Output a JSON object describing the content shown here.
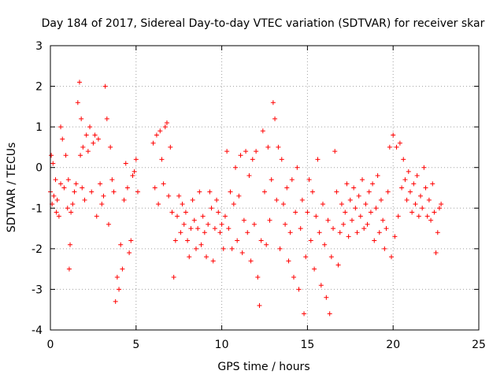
{
  "chart_data": {
    "type": "scatter",
    "title": "Day 184 of 2017, Sidereal Day-to-day VTEC variation (SDTVAR) for receiver skar",
    "xlabel": "GPS time / hours",
    "ylabel": "SDTVAR / TECUs",
    "xlim": [
      0,
      25
    ],
    "ylim": [
      -4,
      3
    ],
    "xticks": [
      0,
      5,
      10,
      15,
      20,
      25
    ],
    "yticks": [
      -4,
      -3,
      -2,
      -1,
      0,
      1,
      2,
      3
    ],
    "grid": true,
    "marker": "+",
    "series": [
      {
        "name": "SDTVAR",
        "color": "#ff0000",
        "points": [
          [
            0.0,
            -0.6
          ],
          [
            0.05,
            0.3
          ],
          [
            0.1,
            -0.9
          ],
          [
            0.15,
            0.1
          ],
          [
            0.2,
            -0.7
          ],
          [
            0.3,
            -0.3
          ],
          [
            0.35,
            -1.1
          ],
          [
            0.4,
            -0.8
          ],
          [
            0.5,
            -1.2
          ],
          [
            0.6,
            -0.4
          ],
          [
            0.6,
            1.0
          ],
          [
            0.7,
            0.7
          ],
          [
            0.8,
            -0.5
          ],
          [
            0.9,
            0.3
          ],
          [
            1.0,
            -1.0
          ],
          [
            1.05,
            -0.3
          ],
          [
            1.1,
            -2.5
          ],
          [
            1.15,
            -1.9
          ],
          [
            1.2,
            -1.1
          ],
          [
            1.3,
            -0.9
          ],
          [
            1.4,
            -0.6
          ],
          [
            1.5,
            -0.4
          ],
          [
            1.6,
            1.6
          ],
          [
            1.7,
            2.1
          ],
          [
            1.75,
            0.3
          ],
          [
            1.8,
            1.2
          ],
          [
            1.85,
            -0.5
          ],
          [
            1.9,
            0.5
          ],
          [
            2.0,
            -0.8
          ],
          [
            2.1,
            0.8
          ],
          [
            2.2,
            0.4
          ],
          [
            2.3,
            1.0
          ],
          [
            2.4,
            -0.6
          ],
          [
            2.5,
            0.6
          ],
          [
            2.6,
            0.8
          ],
          [
            2.7,
            -1.2
          ],
          [
            2.8,
            0.7
          ],
          [
            2.9,
            -0.4
          ],
          [
            3.0,
            -0.9
          ],
          [
            3.1,
            -0.7
          ],
          [
            3.2,
            2.0
          ],
          [
            3.3,
            1.2
          ],
          [
            3.4,
            -1.4
          ],
          [
            3.5,
            0.5
          ],
          [
            3.6,
            -0.3
          ],
          [
            3.7,
            -0.6
          ],
          [
            3.8,
            -3.3
          ],
          [
            3.9,
            -2.7
          ],
          [
            4.0,
            -3.0
          ],
          [
            4.1,
            -1.9
          ],
          [
            4.2,
            -2.5
          ],
          [
            4.3,
            -0.8
          ],
          [
            4.4,
            0.1
          ],
          [
            4.5,
            -0.5
          ],
          [
            4.6,
            -2.1
          ],
          [
            4.7,
            -1.8
          ],
          [
            4.8,
            -0.2
          ],
          [
            4.9,
            -0.1
          ],
          [
            5.0,
            0.2
          ],
          [
            5.1,
            -0.6
          ],
          [
            6.0,
            0.6
          ],
          [
            6.1,
            -0.5
          ],
          [
            6.2,
            0.8
          ],
          [
            6.3,
            -0.9
          ],
          [
            6.4,
            0.9
          ],
          [
            6.5,
            0.2
          ],
          [
            6.6,
            -0.4
          ],
          [
            6.7,
            1.0
          ],
          [
            6.8,
            1.1
          ],
          [
            6.9,
            -0.7
          ],
          [
            7.0,
            0.5
          ],
          [
            7.1,
            -1.1
          ],
          [
            7.2,
            -2.7
          ],
          [
            7.3,
            -1.8
          ],
          [
            7.4,
            -1.2
          ],
          [
            7.5,
            -0.7
          ],
          [
            7.6,
            -1.6
          ],
          [
            7.7,
            -0.9
          ],
          [
            7.8,
            -1.4
          ],
          [
            7.9,
            -1.1
          ],
          [
            8.0,
            -1.8
          ],
          [
            8.1,
            -2.2
          ],
          [
            8.2,
            -1.5
          ],
          [
            8.3,
            -0.8
          ],
          [
            8.4,
            -1.3
          ],
          [
            8.5,
            -2.0
          ],
          [
            8.6,
            -1.5
          ],
          [
            8.7,
            -0.6
          ],
          [
            8.8,
            -1.9
          ],
          [
            8.9,
            -1.2
          ],
          [
            9.0,
            -1.6
          ],
          [
            9.1,
            -2.2
          ],
          [
            9.2,
            -1.4
          ],
          [
            9.3,
            -0.6
          ],
          [
            9.4,
            -1.0
          ],
          [
            9.5,
            -2.3
          ],
          [
            9.6,
            -1.5
          ],
          [
            9.7,
            -0.8
          ],
          [
            9.8,
            -1.1
          ],
          [
            9.9,
            -1.6
          ],
          [
            10.0,
            -1.4
          ],
          [
            10.1,
            -2.0
          ],
          [
            10.2,
            -1.2
          ],
          [
            10.3,
            0.4
          ],
          [
            10.4,
            -1.5
          ],
          [
            10.5,
            -0.6
          ],
          [
            10.6,
            -2.0
          ],
          [
            10.7,
            -0.9
          ],
          [
            10.8,
            0.0
          ],
          [
            10.9,
            -1.8
          ],
          [
            11.0,
            -0.7
          ],
          [
            11.1,
            0.3
          ],
          [
            11.2,
            -2.1
          ],
          [
            11.3,
            -1.3
          ],
          [
            11.4,
            0.4
          ],
          [
            11.5,
            -1.6
          ],
          [
            11.6,
            -0.2
          ],
          [
            11.7,
            -2.3
          ],
          [
            11.8,
            0.2
          ],
          [
            11.9,
            -1.4
          ],
          [
            12.0,
            0.4
          ],
          [
            12.1,
            -2.7
          ],
          [
            12.2,
            -3.4
          ],
          [
            12.3,
            -1.8
          ],
          [
            12.4,
            0.9
          ],
          [
            12.5,
            -0.6
          ],
          [
            12.6,
            -1.9
          ],
          [
            12.7,
            0.5
          ],
          [
            12.8,
            -1.3
          ],
          [
            12.9,
            -0.3
          ],
          [
            13.0,
            1.6
          ],
          [
            13.1,
            1.2
          ],
          [
            13.2,
            -0.8
          ],
          [
            13.3,
            0.5
          ],
          [
            13.4,
            -2.0
          ],
          [
            13.5,
            0.2
          ],
          [
            13.6,
            -0.9
          ],
          [
            13.7,
            -1.4
          ],
          [
            13.8,
            -0.5
          ],
          [
            13.9,
            -2.3
          ],
          [
            14.0,
            -1.6
          ],
          [
            14.1,
            -0.3
          ],
          [
            14.2,
            -2.7
          ],
          [
            14.3,
            -1.1
          ],
          [
            14.4,
            0.0
          ],
          [
            14.5,
            -3.0
          ],
          [
            14.6,
            -1.5
          ],
          [
            14.7,
            -0.8
          ],
          [
            14.8,
            -3.6
          ],
          [
            14.9,
            -2.2
          ],
          [
            15.0,
            -1.1
          ],
          [
            15.1,
            -0.3
          ],
          [
            15.2,
            -1.8
          ],
          [
            15.3,
            -0.6
          ],
          [
            15.4,
            -2.5
          ],
          [
            15.5,
            -1.2
          ],
          [
            15.6,
            0.2
          ],
          [
            15.7,
            -1.6
          ],
          [
            15.8,
            -2.9
          ],
          [
            15.9,
            -0.9
          ],
          [
            16.0,
            -1.9
          ],
          [
            16.1,
            -3.2
          ],
          [
            16.2,
            -1.3
          ],
          [
            16.3,
            -3.6
          ],
          [
            16.4,
            -2.2
          ],
          [
            16.5,
            -1.5
          ],
          [
            16.6,
            0.4
          ],
          [
            16.7,
            -0.6
          ],
          [
            16.8,
            -2.4
          ],
          [
            16.9,
            -1.6
          ],
          [
            17.0,
            -0.9
          ],
          [
            17.1,
            -1.4
          ],
          [
            17.2,
            -1.1
          ],
          [
            17.3,
            -0.4
          ],
          [
            17.4,
            -1.7
          ],
          [
            17.5,
            -0.8
          ],
          [
            17.6,
            -1.3
          ],
          [
            17.7,
            -0.5
          ],
          [
            17.8,
            -1.0
          ],
          [
            17.9,
            -1.6
          ],
          [
            18.0,
            -0.7
          ],
          [
            18.1,
            -1.2
          ],
          [
            18.2,
            -0.3
          ],
          [
            18.3,
            -1.5
          ],
          [
            18.4,
            -0.9
          ],
          [
            18.5,
            -1.4
          ],
          [
            18.6,
            -0.6
          ],
          [
            18.7,
            -1.1
          ],
          [
            18.8,
            -0.4
          ],
          [
            18.9,
            -1.8
          ],
          [
            19.0,
            -1.0
          ],
          [
            19.1,
            -0.2
          ],
          [
            19.2,
            -1.6
          ],
          [
            19.3,
            -0.8
          ],
          [
            19.4,
            -1.3
          ],
          [
            19.5,
            -2.0
          ],
          [
            19.6,
            -1.5
          ],
          [
            19.7,
            -0.6
          ],
          [
            19.8,
            0.5
          ],
          [
            19.9,
            -2.2
          ],
          [
            20.0,
            0.8
          ],
          [
            20.1,
            -1.7
          ],
          [
            20.2,
            0.5
          ],
          [
            20.3,
            -1.2
          ],
          [
            20.4,
            0.6
          ],
          [
            20.5,
            -0.5
          ],
          [
            20.6,
            0.2
          ],
          [
            20.7,
            -0.3
          ],
          [
            20.8,
            -0.8
          ],
          [
            20.9,
            -0.1
          ],
          [
            21.0,
            -0.6
          ],
          [
            21.1,
            -1.1
          ],
          [
            21.2,
            -0.4
          ],
          [
            21.3,
            -0.9
          ],
          [
            21.4,
            -0.2
          ],
          [
            21.5,
            -1.2
          ],
          [
            21.6,
            -0.7
          ],
          [
            21.7,
            -1.0
          ],
          [
            21.8,
            0.0
          ],
          [
            21.9,
            -0.5
          ],
          [
            22.0,
            -1.2
          ],
          [
            22.1,
            -0.8
          ],
          [
            22.2,
            -1.3
          ],
          [
            22.3,
            -0.4
          ],
          [
            22.4,
            -1.1
          ],
          [
            22.5,
            -2.1
          ],
          [
            22.6,
            -1.6
          ],
          [
            22.7,
            -1.0
          ],
          [
            22.8,
            -0.9
          ]
        ]
      }
    ]
  }
}
